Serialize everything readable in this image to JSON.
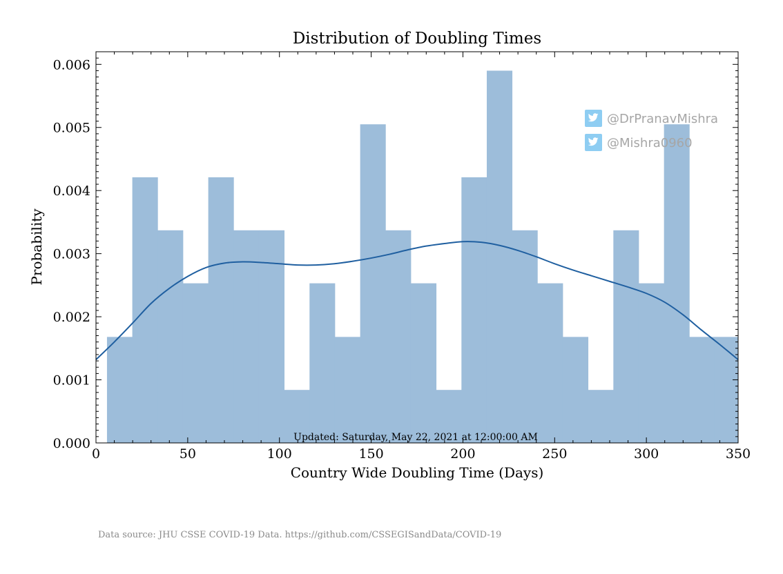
{
  "chart_data": {
    "type": "bar",
    "title": "Distribution of Doubling Times",
    "xlabel": "Country Wide Doubling Time (Days)",
    "ylabel": "Probability",
    "xlim": [
      0,
      350
    ],
    "ylim": [
      0,
      0.0062
    ],
    "x_ticks": [
      0,
      50,
      100,
      150,
      200,
      250,
      300,
      350
    ],
    "y_ticks": [
      0.0,
      0.001,
      0.002,
      0.003,
      0.004,
      0.005,
      0.006
    ],
    "y_tick_labels": [
      "0.000",
      "0.001",
      "0.002",
      "0.003",
      "0.004",
      "0.005",
      "0.006"
    ],
    "grid": false,
    "histogram": {
      "bin_edges": [
        6.0,
        19.8,
        33.6,
        47.4,
        61.2,
        75.0,
        88.8,
        102.6,
        116.4,
        130.2,
        144.0,
        157.8,
        171.6,
        185.4,
        199.2,
        213.0,
        226.8,
        240.6,
        254.4,
        268.2,
        282.0,
        295.8,
        309.6,
        323.4,
        337.2,
        351.0
      ],
      "values": [
        0.00168,
        0.00421,
        0.00337,
        0.00253,
        0.00421,
        0.00337,
        0.00337,
        0.00084,
        0.00253,
        0.00168,
        0.00505,
        0.00337,
        0.00253,
        0.00084,
        0.00421,
        0.0059,
        0.00337,
        0.00253,
        0.00168,
        0.00084,
        0.00337,
        0.00253,
        0.00505,
        0.00168,
        0.00168
      ],
      "color": "#9dbdda"
    },
    "kde": {
      "x": [
        0,
        10,
        20,
        30,
        40,
        50,
        60,
        70,
        80,
        90,
        100,
        110,
        120,
        130,
        140,
        150,
        160,
        170,
        180,
        190,
        200,
        210,
        220,
        230,
        240,
        250,
        260,
        270,
        280,
        290,
        300,
        310,
        320,
        330,
        340,
        350
      ],
      "y": [
        0.00132,
        0.0016,
        0.0019,
        0.00221,
        0.00245,
        0.00264,
        0.00278,
        0.00285,
        0.00287,
        0.00286,
        0.00284,
        0.00282,
        0.00282,
        0.00284,
        0.00288,
        0.00293,
        0.00299,
        0.00306,
        0.00312,
        0.00316,
        0.00319,
        0.00318,
        0.00313,
        0.00305,
        0.00295,
        0.00284,
        0.00274,
        0.00265,
        0.00256,
        0.00247,
        0.00237,
        0.00223,
        0.00203,
        0.00179,
        0.00156,
        0.00132
      ],
      "color": "#1f5fa0"
    }
  },
  "annotations": {
    "updated": "Updated: Saturday, May 22, 2021 at 12:00:00 AM",
    "source": "Data source: JHU CSSE COVID-19 Data. https://github.com/CSSEGISandData/COVID-19"
  },
  "watermark": {
    "handles": [
      "@DrPranavMishra",
      "@Mishra0960"
    ],
    "icon": "twitter-bird-icon",
    "icon_color": "#8ecdf2",
    "text_color": "#a6a6a6"
  }
}
